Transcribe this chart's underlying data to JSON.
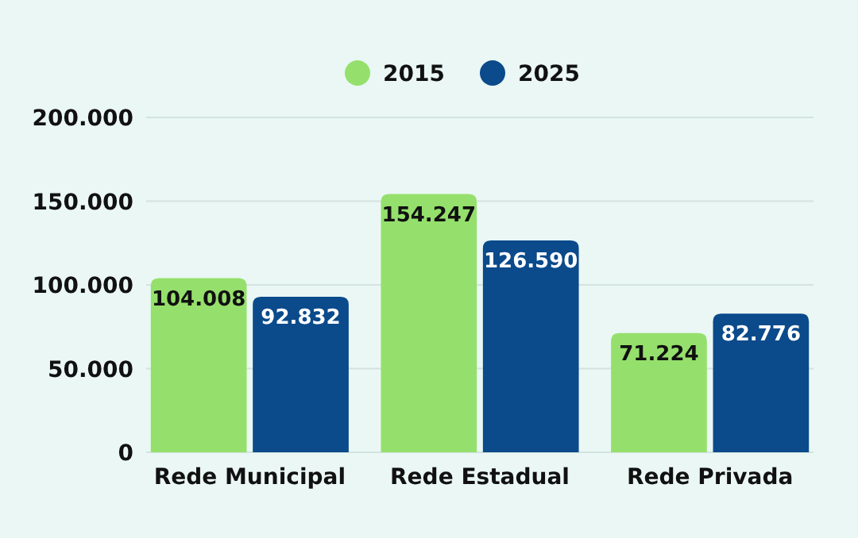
{
  "chart_data": {
    "type": "bar",
    "categories": [
      "Rede Municipal",
      "Rede Estadual",
      "Rede Privada"
    ],
    "series": [
      {
        "name": "2015",
        "color": "#95e06c",
        "values": [
          104008,
          154247,
          71224
        ],
        "value_labels": [
          "104.008",
          "154.247",
          "71.224"
        ]
      },
      {
        "name": "2025",
        "color": "#0b4a8b",
        "values": [
          92832,
          126590,
          82776
        ],
        "value_labels": [
          "92.832",
          "126.590",
          "82.776"
        ]
      }
    ],
    "ylim": [
      0,
      200000
    ],
    "yticks": [
      {
        "value": 0,
        "label": "0"
      },
      {
        "value": 50000,
        "label": "50.000"
      },
      {
        "value": 100000,
        "label": "100.000"
      },
      {
        "value": 150000,
        "label": "150.000"
      },
      {
        "value": 200000,
        "label": "200.000"
      }
    ],
    "grid": "y",
    "legend": "top"
  }
}
